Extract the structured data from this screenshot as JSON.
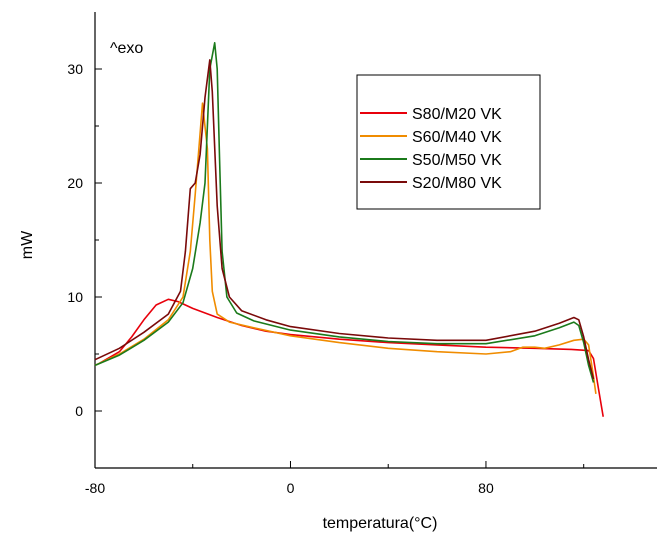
{
  "chart_data": {
    "type": "line",
    "title": "",
    "xlabel": "temperatura(°C)",
    "ylabel": "mW",
    "annotation": "^exo",
    "xlim": [
      -80,
      150
    ],
    "ylim": [
      -5,
      35
    ],
    "x_ticks": [
      -80,
      0,
      80
    ],
    "y_ticks": [
      0,
      10,
      20,
      30
    ],
    "legend_position": "top-right",
    "series": [
      {
        "name": "S80/M20 VK",
        "color": "#e8000b",
        "points": [
          [
            -78,
            4.2
          ],
          [
            -70,
            5.2
          ],
          [
            -65,
            6.5
          ],
          [
            -60,
            8.0
          ],
          [
            -55,
            9.3
          ],
          [
            -50,
            9.8
          ],
          [
            -46,
            9.6
          ],
          [
            -40,
            9.0
          ],
          [
            -30,
            8.2
          ],
          [
            -20,
            7.5
          ],
          [
            -10,
            7.0
          ],
          [
            0,
            6.7
          ],
          [
            20,
            6.3
          ],
          [
            40,
            6.0
          ],
          [
            60,
            5.8
          ],
          [
            80,
            5.6
          ],
          [
            100,
            5.5
          ],
          [
            115,
            5.4
          ],
          [
            122,
            5.3
          ],
          [
            124,
            4.6
          ],
          [
            126,
            2.0
          ],
          [
            128,
            -0.5
          ]
        ]
      },
      {
        "name": "S60/M40 VK",
        "color": "#f08c00",
        "points": [
          [
            -80,
            4.0
          ],
          [
            -70,
            5.0
          ],
          [
            -60,
            6.3
          ],
          [
            -50,
            8.0
          ],
          [
            -44,
            10.0
          ],
          [
            -41,
            14.0
          ],
          [
            -39,
            19.0
          ],
          [
            -36,
            27.0
          ],
          [
            -34,
            23.0
          ],
          [
            -33,
            15.0
          ],
          [
            -32,
            10.5
          ],
          [
            -30,
            8.5
          ],
          [
            -25,
            7.8
          ],
          [
            -15,
            7.3
          ],
          [
            0,
            6.6
          ],
          [
            20,
            6.0
          ],
          [
            40,
            5.5
          ],
          [
            60,
            5.2
          ],
          [
            80,
            5.0
          ],
          [
            90,
            5.2
          ],
          [
            95,
            5.6
          ],
          [
            100,
            5.6
          ],
          [
            104,
            5.5
          ],
          [
            110,
            5.8
          ],
          [
            116,
            6.2
          ],
          [
            120,
            6.3
          ],
          [
            122,
            5.8
          ],
          [
            124,
            3.0
          ],
          [
            125,
            1.5
          ]
        ]
      },
      {
        "name": "S50/M50 VK",
        "color": "#1b7a1b",
        "points": [
          [
            -80,
            4.0
          ],
          [
            -70,
            4.9
          ],
          [
            -60,
            6.2
          ],
          [
            -50,
            7.8
          ],
          [
            -44,
            9.5
          ],
          [
            -40,
            12.5
          ],
          [
            -37,
            16.5
          ],
          [
            -35,
            20.0
          ],
          [
            -34,
            25.0
          ],
          [
            -33,
            30.0
          ],
          [
            -31,
            32.3
          ],
          [
            -30,
            30.0
          ],
          [
            -29,
            22.0
          ],
          [
            -28,
            14.0
          ],
          [
            -26,
            10.0
          ],
          [
            -22,
            8.6
          ],
          [
            -15,
            7.9
          ],
          [
            0,
            7.1
          ],
          [
            20,
            6.5
          ],
          [
            40,
            6.1
          ],
          [
            60,
            5.9
          ],
          [
            80,
            5.9
          ],
          [
            100,
            6.6
          ],
          [
            110,
            7.3
          ],
          [
            116,
            7.8
          ],
          [
            118,
            7.5
          ],
          [
            120,
            6.0
          ],
          [
            122,
            4.0
          ],
          [
            124,
            2.5
          ]
        ]
      },
      {
        "name": "S20/M80 VK",
        "color": "#7a0a0a",
        "points": [
          [
            -80,
            4.5
          ],
          [
            -70,
            5.5
          ],
          [
            -60,
            6.9
          ],
          [
            -50,
            8.5
          ],
          [
            -45,
            10.5
          ],
          [
            -43,
            14.0
          ],
          [
            -41,
            19.5
          ],
          [
            -39,
            20.0
          ],
          [
            -37,
            22.5
          ],
          [
            -35,
            27.5
          ],
          [
            -33,
            30.8
          ],
          [
            -32,
            28.0
          ],
          [
            -30,
            18.0
          ],
          [
            -28,
            12.5
          ],
          [
            -25,
            10.0
          ],
          [
            -20,
            8.8
          ],
          [
            -10,
            8.0
          ],
          [
            0,
            7.4
          ],
          [
            20,
            6.8
          ],
          [
            40,
            6.4
          ],
          [
            60,
            6.2
          ],
          [
            80,
            6.2
          ],
          [
            100,
            7.0
          ],
          [
            110,
            7.7
          ],
          [
            116,
            8.2
          ],
          [
            118,
            8.0
          ],
          [
            120,
            6.5
          ],
          [
            122,
            4.5
          ],
          [
            124,
            2.8
          ]
        ]
      }
    ]
  }
}
